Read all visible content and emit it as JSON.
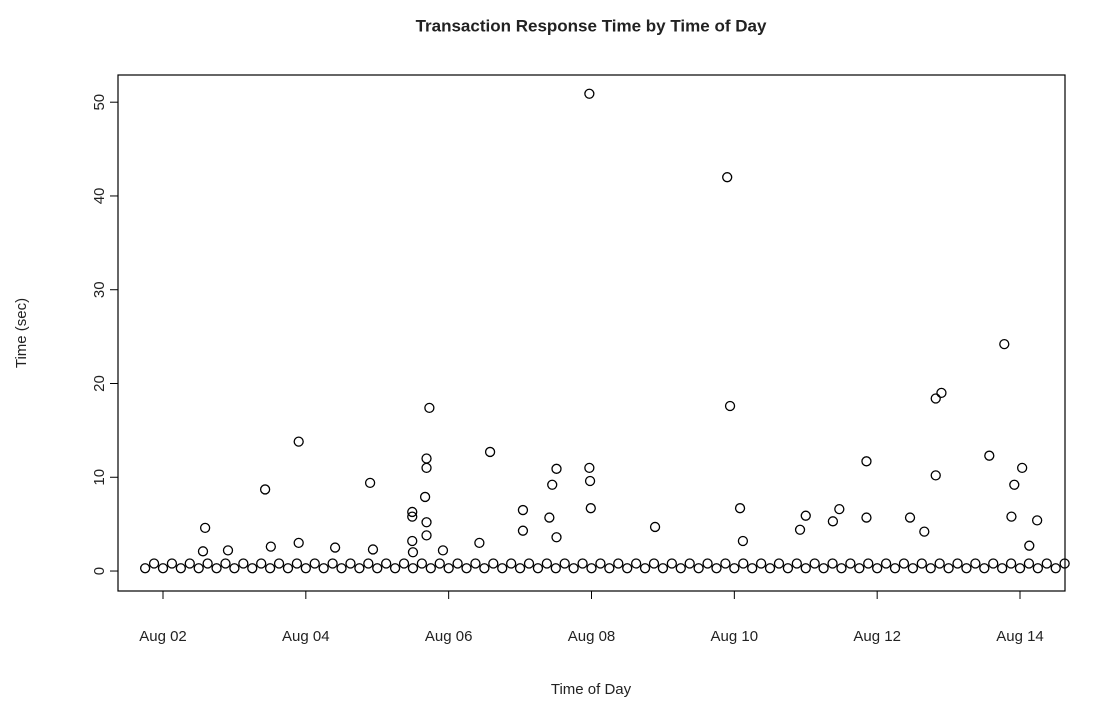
{
  "chart_data": {
    "type": "scatter",
    "title": "Transaction Response Time by Time of Day",
    "x_label": "Time of Day",
    "y_label": "Time (sec)",
    "color": "#000000",
    "xlim": [
      1.37,
      14.63
    ],
    "ylim": [
      -2.13,
      52.9
    ],
    "xticks": [
      {
        "value": 2,
        "label": "Aug 02"
      },
      {
        "value": 4,
        "label": "Aug 04"
      },
      {
        "value": 6,
        "label": "Aug 06"
      },
      {
        "value": 8,
        "label": "Aug 08"
      },
      {
        "value": 10,
        "label": "Aug 10"
      },
      {
        "value": 12,
        "label": "Aug 12"
      },
      {
        "value": 14,
        "label": "Aug 14"
      }
    ],
    "yticks": [
      0,
      10,
      20,
      30,
      40,
      50
    ],
    "x": [
      1.75,
      2,
      2.25,
      2.5,
      2.75,
      3,
      3.25,
      3.5,
      3.75,
      4,
      4.25,
      4.5,
      4.75,
      5,
      5.25,
      5.5,
      5.75,
      6,
      6.25,
      6.5,
      6.75,
      7,
      7.25,
      7.5,
      7.75,
      8,
      8.25,
      8.5,
      8.75,
      9,
      9.25,
      9.5,
      9.75,
      10,
      10.25,
      10.5,
      10.75,
      11,
      11.25,
      11.5,
      11.75,
      12,
      12.25,
      12.5,
      12.75,
      13,
      13.25,
      13.5,
      13.75,
      14,
      14.25,
      14.5,
      1.875,
      2.125,
      2.375,
      2.625,
      2.875,
      3.125,
      3.375,
      3.625,
      3.875,
      4.125,
      4.375,
      4.625,
      4.875,
      5.125,
      5.375,
      5.625,
      5.875,
      6.125,
      6.375,
      6.625,
      6.875,
      7.125,
      7.375,
      7.625,
      7.875,
      8.125,
      8.375,
      8.625,
      8.875,
      9.125,
      9.375,
      9.625,
      9.875,
      10.125,
      10.375,
      10.625,
      10.875,
      11.125,
      11.375,
      11.625,
      11.875,
      12.125,
      12.375,
      12.625,
      12.875,
      13.125,
      13.375,
      13.625,
      13.875,
      14.125,
      14.375,
      14.625,
      2.59,
      2.56,
      2.91,
      3.43,
      3.51,
      3.9,
      3.9,
      4.41,
      4.9,
      4.94,
      5.49,
      5.49,
      5.49,
      5.5,
      5.67,
      5.69,
      5.69,
      5.73,
      5.69,
      5.69,
      5.92,
      6.43,
      6.58,
      7.04,
      7.04,
      7.41,
      7.45,
      7.51,
      7.51,
      7.97,
      7.97,
      7.98,
      7.99,
      8.89,
      9.9,
      9.94,
      10.08,
      10.12,
      10.92,
      11.0,
      11.38,
      11.47,
      11.85,
      11.85,
      12.46,
      12.66,
      12.82,
      12.82,
      12.9,
      13.57,
      13.78,
      13.88,
      13.92,
      14.03,
      14.13,
      14.24
    ],
    "values": [
      0.3,
      0.3,
      0.3,
      0.3,
      0.3,
      0.3,
      0.3,
      0.3,
      0.3,
      0.3,
      0.3,
      0.3,
      0.3,
      0.3,
      0.3,
      0.3,
      0.3,
      0.3,
      0.3,
      0.3,
      0.3,
      0.3,
      0.3,
      0.3,
      0.3,
      0.3,
      0.3,
      0.3,
      0.3,
      0.3,
      0.3,
      0.3,
      0.3,
      0.3,
      0.3,
      0.3,
      0.3,
      0.3,
      0.3,
      0.3,
      0.3,
      0.3,
      0.3,
      0.3,
      0.3,
      0.3,
      0.3,
      0.3,
      0.3,
      0.3,
      0.3,
      0.3,
      0.8,
      0.8,
      0.8,
      0.8,
      0.8,
      0.8,
      0.8,
      0.8,
      0.8,
      0.8,
      0.8,
      0.8,
      0.8,
      0.8,
      0.8,
      0.8,
      0.8,
      0.8,
      0.8,
      0.8,
      0.8,
      0.8,
      0.8,
      0.8,
      0.8,
      0.8,
      0.8,
      0.8,
      0.8,
      0.8,
      0.8,
      0.8,
      0.8,
      0.8,
      0.8,
      0.8,
      0.8,
      0.8,
      0.8,
      0.8,
      0.8,
      0.8,
      0.8,
      0.8,
      0.8,
      0.8,
      0.8,
      0.8,
      0.8,
      0.8,
      0.8,
      0.8,
      4.6,
      2.1,
      2.2,
      8.7,
      2.6,
      13.8,
      3.0,
      2.5,
      9.4,
      2.3,
      6.3,
      5.8,
      3.2,
      2.0,
      7.9,
      12.0,
      11.0,
      17.4,
      5.2,
      3.8,
      2.2,
      3.0,
      12.7,
      6.5,
      4.3,
      5.7,
      9.2,
      10.9,
      3.6,
      50.9,
      11.0,
      9.6,
      6.7,
      4.7,
      42.0,
      17.6,
      6.7,
      3.2,
      4.4,
      5.9,
      5.3,
      6.6,
      11.7,
      5.7,
      5.7,
      4.2,
      10.2,
      18.4,
      19.0,
      12.3,
      24.2,
      5.8,
      9.2,
      11.0,
      2.7,
      5.4
    ]
  }
}
